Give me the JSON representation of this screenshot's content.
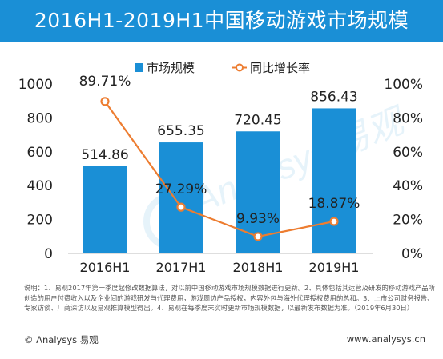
{
  "header": {
    "title": "2016H1-2019H1中国移动游戏市场规模"
  },
  "chart_data": {
    "type": "bar",
    "title": "2016H1-2019H1中国移动游戏市场规模",
    "categories": [
      "2016H1",
      "2017H1",
      "2018H1",
      "2019H1"
    ],
    "series": [
      {
        "name": "市场规模",
        "type": "bar",
        "axis": "left",
        "color": "#1a8fd6",
        "values": [
          514.86,
          655.35,
          720.45,
          856.43
        ],
        "labels": [
          "514.86",
          "655.35",
          "720.45",
          "856.43"
        ]
      },
      {
        "name": "同比增长率",
        "type": "line",
        "axis": "right",
        "color": "#ed7d31",
        "values": [
          89.71,
          27.29,
          9.93,
          18.87
        ],
        "labels": [
          "89.71%",
          "27.29%",
          "9.93%",
          "18.87%"
        ]
      }
    ],
    "y_left": {
      "min": 0,
      "max": 1000,
      "ticks": [
        "0",
        "200",
        "400",
        "600",
        "800",
        "1000"
      ]
    },
    "y_right": {
      "min": 0,
      "max": 100,
      "ticks": [
        "0%",
        "20%",
        "40%",
        "60%",
        "80%",
        "100%"
      ]
    },
    "legend": {
      "position": "top-center"
    },
    "grid": false
  },
  "note": "说明：1、易观2017年第一季度起修改数据算法，对以前中国移动游戏市场规模数据进行更新。2、具体包括其运营及研发的移动游戏产品所创造的用户付费收入以及企业间的游戏研发与代理费用，游戏周边产品授权，内容外包与海外代理授权费用的总和。3、上市公司财务报告、专家访谈、厂商深访以及易观推算模型得出。4、易观在每季度末实时更新市场规模数据，以最新发布数据为准。（2019年6月30日）",
  "footer": {
    "brand": "© Analysys 易观",
    "url": "www.analysys.cn"
  },
  "watermark": {
    "text": "Analysys 易观"
  }
}
